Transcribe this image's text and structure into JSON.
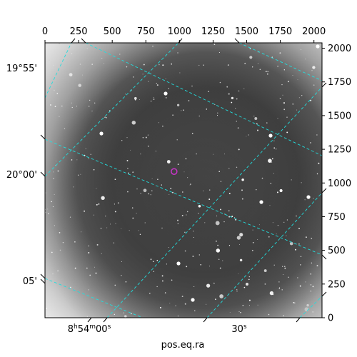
{
  "chart_data": {
    "type": "image",
    "xlabel": "pos.eq.ra",
    "pixel_axes": {
      "x": {
        "range": [
          0,
          2060
        ],
        "ticks": [
          0,
          250,
          500,
          750,
          1000,
          1250,
          1500,
          1750,
          2000
        ]
      },
      "y": {
        "range": [
          0,
          2040
        ],
        "ticks": [
          0,
          250,
          500,
          750,
          1000,
          1250,
          1500,
          1750,
          2000
        ]
      }
    },
    "world_axes": {
      "ra_ticks": [
        {
          "label_main": "8",
          "label_h": "h",
          "label_m_val": "54",
          "label_m": "m",
          "label_s_val": "00",
          "label_s": "s"
        },
        {
          "label_s_val": "30",
          "label_s": "s"
        }
      ],
      "dec_ticks": [
        "19°55'",
        "20°00'",
        "05'"
      ]
    },
    "marker": {
      "x": 960,
      "y": 1085,
      "color": "#cc33cc"
    },
    "colors": {
      "grid": "#22dddd",
      "frame": "#000000"
    }
  }
}
